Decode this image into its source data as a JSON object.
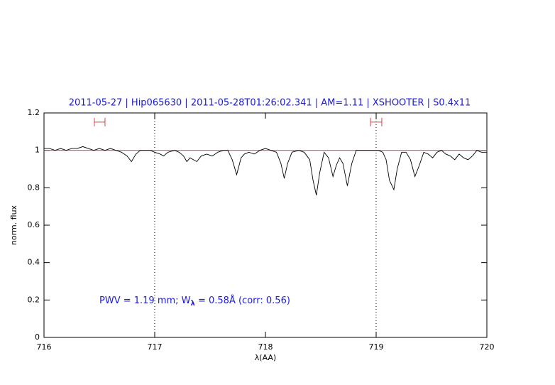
{
  "chart_data": {
    "type": "line",
    "title": "2011-05-27 | Hip065630 | 2011-05-28T01:26:02.341 | AM=1.11 | XSHOOTER | S0.4x11",
    "xlabel": "λ(AA)",
    "ylabel": "norm. flux",
    "annotation": {
      "prefix": "PWV = 1.19 mm; W",
      "subscript": "λ",
      "suffix": " = 0.58Å (corr: 0.56)"
    },
    "xlim": [
      716,
      720
    ],
    "xticks": [
      716,
      717,
      718,
      719,
      720
    ],
    "ylim": [
      0,
      1.2
    ],
    "yticks": [
      0,
      0.2,
      0.4,
      0.6,
      0.8,
      1,
      1.2
    ],
    "reference_line": {
      "y": 1,
      "color": "#e04040"
    },
    "vlines": [
      717,
      719
    ],
    "range_markers": {
      "color": "#e04040",
      "items": [
        {
          "x": [
            716.455,
            716.551
          ],
          "y": 1.151
        },
        {
          "x": [
            718.949,
            719.051
          ],
          "y": 1.151
        }
      ]
    },
    "series": [
      {
        "name": "spectrum",
        "color": "#000000",
        "x": [
          716.0,
          716.05,
          716.1,
          716.15,
          716.2,
          716.25,
          716.3,
          716.35,
          716.4,
          716.45,
          716.5,
          716.55,
          716.6,
          716.65,
          716.7,
          716.75,
          716.79,
          716.83,
          716.87,
          716.92,
          716.96,
          717.0,
          717.05,
          717.08,
          717.12,
          717.18,
          717.22,
          717.26,
          717.29,
          717.32,
          717.35,
          717.38,
          717.42,
          717.47,
          717.52,
          717.57,
          717.62,
          717.66,
          717.7,
          717.74,
          717.78,
          717.81,
          717.85,
          717.9,
          717.95,
          718.0,
          718.05,
          718.1,
          718.14,
          718.17,
          718.2,
          718.24,
          718.3,
          718.35,
          718.4,
          718.43,
          718.46,
          718.49,
          718.53,
          718.57,
          718.61,
          718.64,
          718.67,
          718.7,
          718.74,
          718.78,
          718.82,
          718.87,
          718.92,
          718.97,
          719.02,
          719.06,
          719.09,
          719.12,
          719.16,
          719.19,
          719.23,
          719.27,
          719.31,
          719.35,
          719.39,
          719.43,
          719.47,
          719.51,
          719.55,
          719.59,
          719.63,
          719.67,
          719.71,
          719.75,
          719.79,
          719.83,
          719.87,
          719.91,
          719.95,
          720.0
        ],
        "values": [
          1.01,
          1.01,
          1.0,
          1.01,
          1.0,
          1.01,
          1.01,
          1.02,
          1.01,
          1.0,
          1.01,
          1.0,
          1.01,
          1.0,
          0.99,
          0.97,
          0.94,
          0.98,
          1.0,
          1.0,
          1.0,
          0.99,
          0.98,
          0.97,
          0.99,
          1.0,
          0.99,
          0.97,
          0.94,
          0.96,
          0.95,
          0.94,
          0.97,
          0.98,
          0.97,
          0.99,
          1.0,
          1.0,
          0.95,
          0.87,
          0.96,
          0.98,
          0.99,
          0.98,
          1.0,
          1.01,
          1.0,
          0.99,
          0.93,
          0.85,
          0.93,
          0.99,
          1.0,
          0.99,
          0.95,
          0.84,
          0.76,
          0.88,
          0.99,
          0.96,
          0.86,
          0.92,
          0.96,
          0.93,
          0.81,
          0.93,
          1.0,
          1.0,
          1.0,
          1.0,
          1.0,
          0.99,
          0.95,
          0.84,
          0.79,
          0.9,
          0.99,
          0.99,
          0.95,
          0.86,
          0.92,
          0.99,
          0.98,
          0.96,
          0.99,
          1.0,
          0.98,
          0.97,
          0.95,
          0.98,
          0.96,
          0.95,
          0.97,
          1.0,
          0.99,
          0.99
        ]
      }
    ]
  }
}
